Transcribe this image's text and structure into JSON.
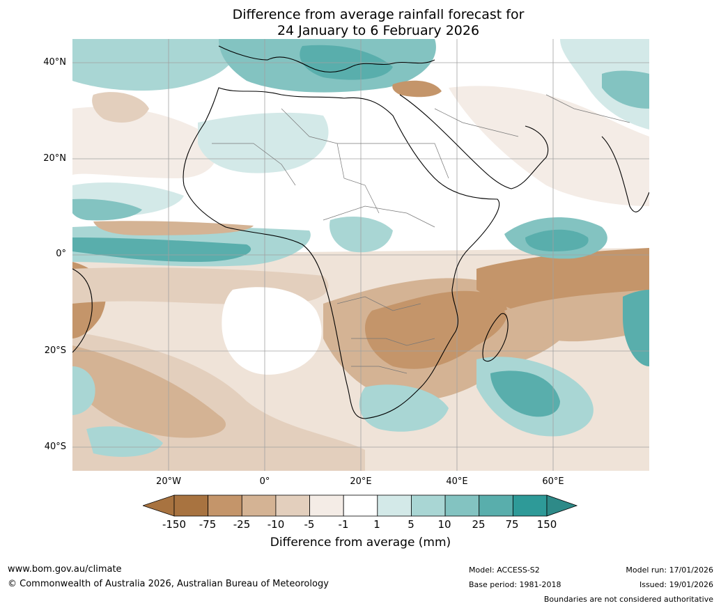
{
  "title": {
    "line1": "Difference from average rainfall forecast for",
    "line2": "24 January to 6 February 2026"
  },
  "map": {
    "lat_labels": [
      "40°N",
      "20°N",
      "0°",
      "20°S",
      "40°S"
    ],
    "lon_labels": [
      "20°W",
      "0°",
      "20°E",
      "40°E",
      "60°E"
    ],
    "lon_extent": [
      -40,
      80
    ],
    "lat_extent": [
      -45,
      45
    ]
  },
  "legend": {
    "ticks": [
      "-150",
      "-75",
      "-25",
      "-10",
      "-5",
      "-1",
      "1",
      "5",
      "10",
      "25",
      "75",
      "150"
    ],
    "colors": [
      "#a87340",
      "#c4956a",
      "#d4b394",
      "#e3cfbd",
      "#f4ece6",
      "#ffffff",
      "#d3e9e8",
      "#a9d6d4",
      "#83c3c1",
      "#59aeac",
      "#2e9a98"
    ],
    "under_color": "#a87340",
    "over_color": "#2e8a88",
    "title": "Difference from average (mm)"
  },
  "footer": {
    "website": "www.bom.gov.au/climate",
    "copyright": "© Commonwealth of Australia 2026, Australian Bureau of Meteorology",
    "model": "Model: ACCESS-S2",
    "base_period": "Base period: 1981-2018",
    "model_run": "Model run: 17/01/2026",
    "issued": "Issued: 19/01/2026",
    "disclaimer": "Boundaries are not considered authoritative"
  }
}
